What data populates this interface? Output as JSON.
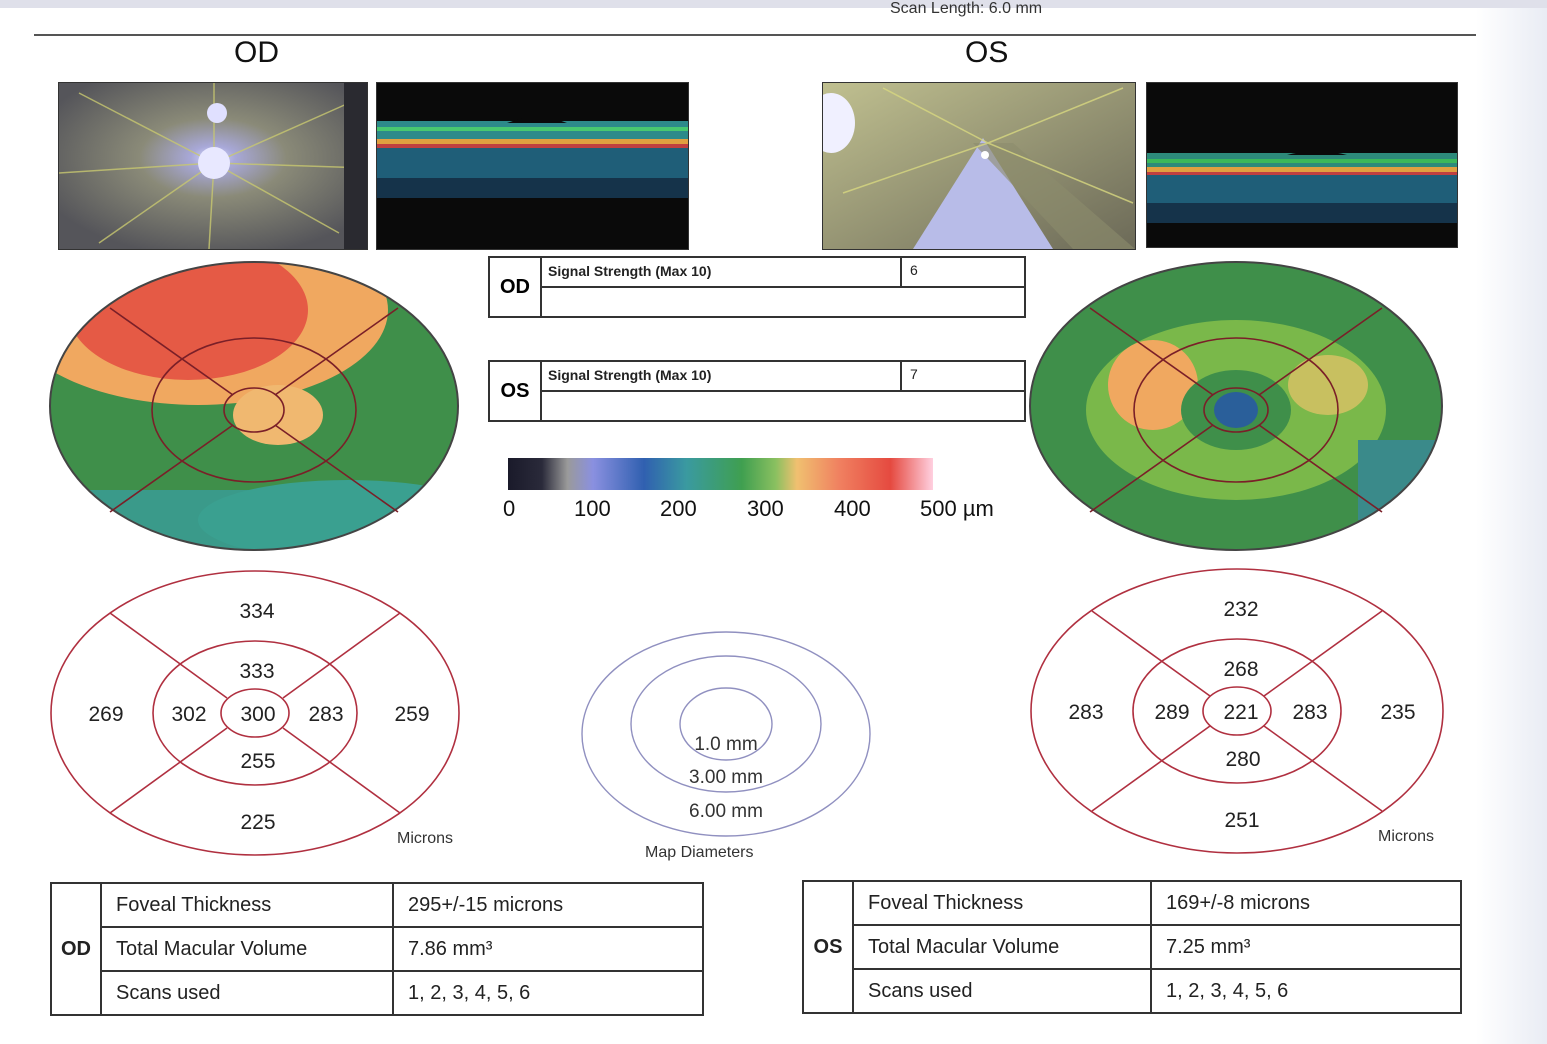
{
  "header": {
    "scan_length_label": "Scan Length:",
    "scan_length_value": "6.0 mm"
  },
  "od": {
    "label": "OD",
    "signal_label": "Signal Strength (Max 10)",
    "signal_value": "6",
    "grid": {
      "superior_outer": "334",
      "superior_inner": "333",
      "temporal_outer": "269",
      "temporal_inner": "302",
      "center": "300",
      "nasal_inner": "283",
      "nasal_outer": "259",
      "inferior_inner": "255",
      "inferior_outer": "225",
      "units": "Microns"
    },
    "table": [
      {
        "label": "Foveal Thickness",
        "value": "295+/-15 microns"
      },
      {
        "label": "Total Macular Volume",
        "value": "7.86 mm³"
      },
      {
        "label": "Scans used",
        "value": "1, 2, 3, 4, 5, 6"
      }
    ]
  },
  "os": {
    "label": "OS",
    "signal_label": "Signal Strength (Max 10)",
    "signal_value": "7",
    "grid": {
      "superior_outer": "232",
      "superior_inner": "268",
      "temporal_outer": "283",
      "temporal_inner": "289",
      "center": "221",
      "nasal_inner": "283",
      "nasal_outer": "235",
      "inferior_inner": "280",
      "inferior_outer": "251",
      "units": "Microns"
    },
    "table": [
      {
        "label": "Foveal Thickness",
        "value": "169+/-8 microns"
      },
      {
        "label": "Total Macular Volume",
        "value": "7.25 mm³"
      },
      {
        "label": "Scans used",
        "value": "1, 2, 3, 4, 5, 6"
      }
    ]
  },
  "color_scale": {
    "ticks": [
      "0",
      "100",
      "200",
      "300",
      "400",
      "500 µm"
    ]
  },
  "map_diameters": {
    "title": "Map Diameters",
    "rings": [
      "1.0 mm",
      "3.00 mm",
      "6.00 mm"
    ]
  },
  "colors": {
    "grid_red": "#b03040",
    "map_green": "#3f8f4a",
    "map_red": "#e55a45",
    "map_orange": "#f0a860"
  }
}
